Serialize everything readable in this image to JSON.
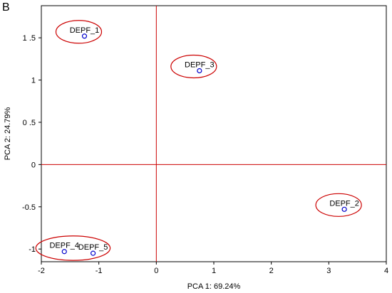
{
  "panel_letter": "B",
  "colors": {
    "axis_line": "#cc0000",
    "point": "#0000cc",
    "ellipse": "#cc0000",
    "frame": "#000000"
  },
  "chart_data": {
    "type": "scatter",
    "title": "",
    "xlabel": "PCA 1: 69.24%",
    "ylabel": "PCA 2: 24.79%",
    "xlim": [
      -2,
      4
    ],
    "ylim": [
      -1.15,
      1.88
    ],
    "x_ticks": [
      {
        "value": -2,
        "label": "-2"
      },
      {
        "value": -1,
        "label": "-1"
      },
      {
        "value": 0,
        "label": "0"
      },
      {
        "value": 1,
        "label": "1"
      },
      {
        "value": 2,
        "label": "2"
      },
      {
        "value": 3,
        "label": "3"
      },
      {
        "value": 4,
        "label": "4"
      }
    ],
    "y_ticks": [
      {
        "value": -1,
        "label": "-1"
      },
      {
        "value": -0.5,
        "label": "-0.5"
      },
      {
        "value": 0,
        "label": "0"
      },
      {
        "value": 0.5,
        "label": "0 .5"
      },
      {
        "value": 1,
        "label": "1"
      },
      {
        "value": 1.5,
        "label": "1 .5"
      }
    ],
    "reference_lines": {
      "x": 0,
      "y": 0
    },
    "points": [
      {
        "label": "DEPF_1",
        "x": -1.25,
        "y": 1.52
      },
      {
        "label": "DEPF_3",
        "x": 0.75,
        "y": 1.11
      },
      {
        "label": "DEPF_2",
        "x": 3.27,
        "y": -0.53
      },
      {
        "label": "DEPF_4",
        "x": -1.6,
        "y": -1.03
      },
      {
        "label": "DEPF_5",
        "x": -1.1,
        "y": -1.05
      }
    ],
    "groups": [
      {
        "members": [
          "DEPF_1"
        ]
      },
      {
        "members": [
          "DEPF_3"
        ]
      },
      {
        "members": [
          "DEPF_2"
        ]
      },
      {
        "members": [
          "DEPF_4",
          "DEPF_5"
        ]
      }
    ]
  }
}
